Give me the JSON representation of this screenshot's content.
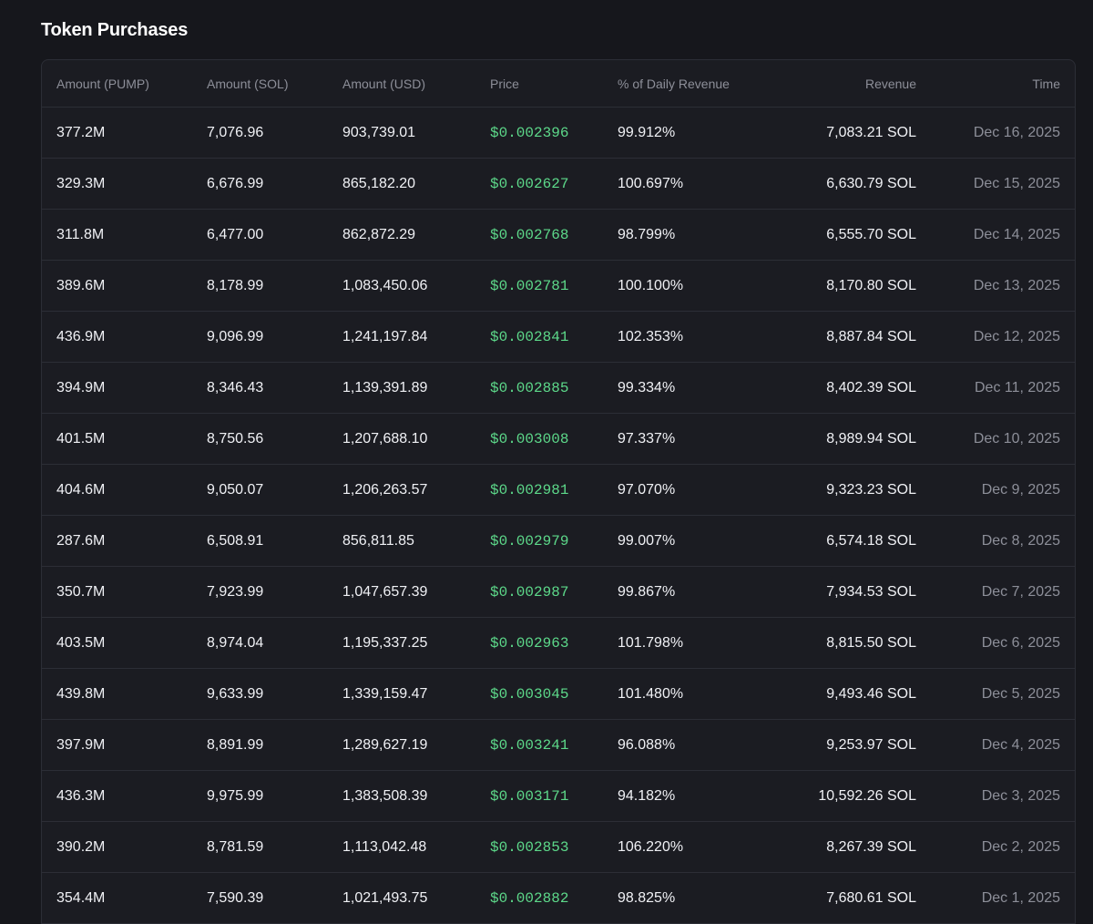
{
  "title": "Token Purchases",
  "colors": {
    "background": "#16171c",
    "panel": "#1b1c22",
    "price_green": "#5dd98a",
    "muted": "#8d8f99"
  },
  "table": {
    "columns": [
      "Amount (PUMP)",
      "Amount (SOL)",
      "Amount (USD)",
      "Price",
      "% of Daily Revenue",
      "Revenue",
      "Time"
    ],
    "rows": [
      [
        "377.2M",
        "7,076.96",
        "903,739.01",
        "$0.002396",
        "99.912%",
        "7,083.21 SOL",
        "Dec 16, 2025"
      ],
      [
        "329.3M",
        "6,676.99",
        "865,182.20",
        "$0.002627",
        "100.697%",
        "6,630.79 SOL",
        "Dec 15, 2025"
      ],
      [
        "311.8M",
        "6,477.00",
        "862,872.29",
        "$0.002768",
        "98.799%",
        "6,555.70 SOL",
        "Dec 14, 2025"
      ],
      [
        "389.6M",
        "8,178.99",
        "1,083,450.06",
        "$0.002781",
        "100.100%",
        "8,170.80 SOL",
        "Dec 13, 2025"
      ],
      [
        "436.9M",
        "9,096.99",
        "1,241,197.84",
        "$0.002841",
        "102.353%",
        "8,887.84 SOL",
        "Dec 12, 2025"
      ],
      [
        "394.9M",
        "8,346.43",
        "1,139,391.89",
        "$0.002885",
        "99.334%",
        "8,402.39 SOL",
        "Dec 11, 2025"
      ],
      [
        "401.5M",
        "8,750.56",
        "1,207,688.10",
        "$0.003008",
        "97.337%",
        "8,989.94 SOL",
        "Dec 10, 2025"
      ],
      [
        "404.6M",
        "9,050.07",
        "1,206,263.57",
        "$0.002981",
        "97.070%",
        "9,323.23 SOL",
        "Dec 9, 2025"
      ],
      [
        "287.6M",
        "6,508.91",
        "856,811.85",
        "$0.002979",
        "99.007%",
        "6,574.18 SOL",
        "Dec 8, 2025"
      ],
      [
        "350.7M",
        "7,923.99",
        "1,047,657.39",
        "$0.002987",
        "99.867%",
        "7,934.53 SOL",
        "Dec 7, 2025"
      ],
      [
        "403.5M",
        "8,974.04",
        "1,195,337.25",
        "$0.002963",
        "101.798%",
        "8,815.50 SOL",
        "Dec 6, 2025"
      ],
      [
        "439.8M",
        "9,633.99",
        "1,339,159.47",
        "$0.003045",
        "101.480%",
        "9,493.46 SOL",
        "Dec 5, 2025"
      ],
      [
        "397.9M",
        "8,891.99",
        "1,289,627.19",
        "$0.003241",
        "96.088%",
        "9,253.97 SOL",
        "Dec 4, 2025"
      ],
      [
        "436.3M",
        "9,975.99",
        "1,383,508.39",
        "$0.003171",
        "94.182%",
        "10,592.26 SOL",
        "Dec 3, 2025"
      ],
      [
        "390.2M",
        "8,781.59",
        "1,113,042.48",
        "$0.002853",
        "106.220%",
        "8,267.39 SOL",
        "Dec 2, 2025"
      ],
      [
        "354.4M",
        "7,590.39",
        "1,021,493.75",
        "$0.002882",
        "98.825%",
        "7,680.61 SOL",
        "Dec 1, 2025"
      ]
    ]
  }
}
